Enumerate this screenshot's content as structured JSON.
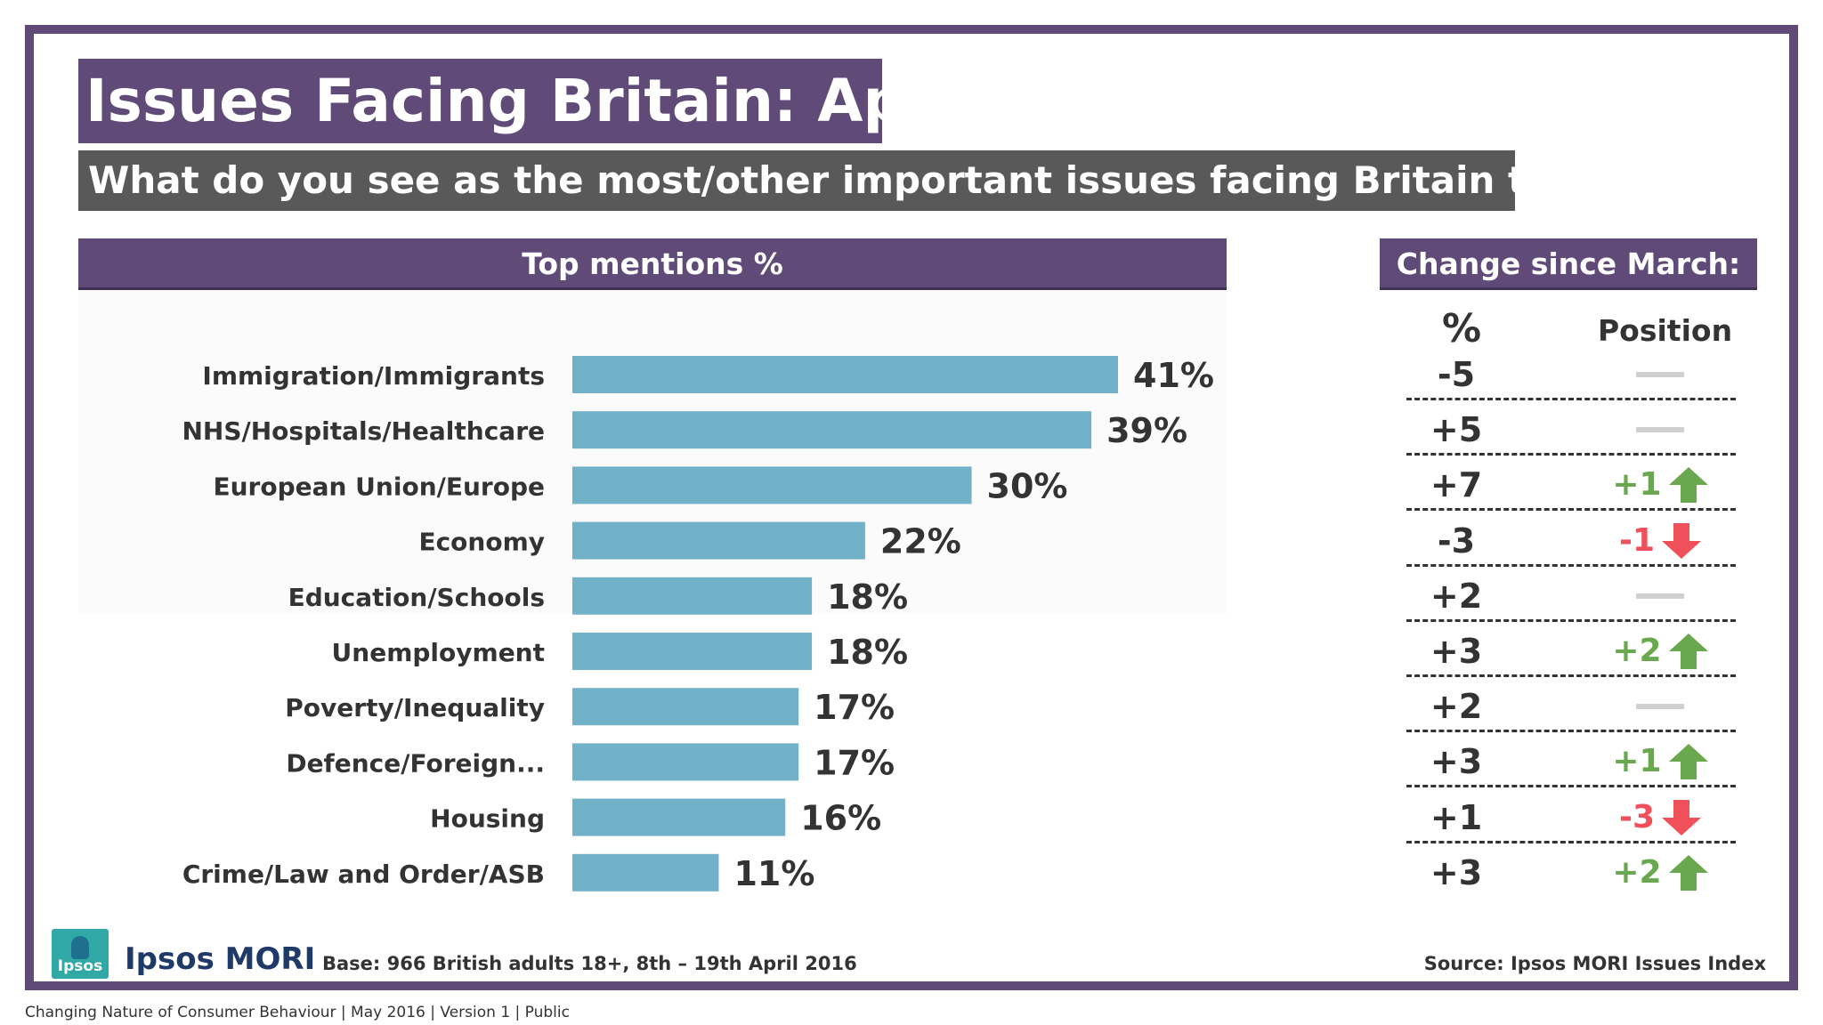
{
  "title": "Issues Facing Britain: April",
  "subtitle": "What do you see as the most/other important issues facing Britain today?",
  "panels": {
    "left_header": "Top mentions %",
    "right_header": "Change since March:",
    "pct_col_label": "%",
    "position_col_label": "Position"
  },
  "colors": {
    "brand_purple": "#5f4a78",
    "bar": "#72b2c9",
    "up": "#6aa84f",
    "down": "#f0505a",
    "no_change": "#cfcfcf"
  },
  "chart_data": {
    "type": "bar",
    "orientation": "horizontal",
    "title": "Top mentions %",
    "xlabel": "",
    "ylabel": "",
    "xlim": [
      0,
      45
    ],
    "grid": false,
    "categories": [
      "Immigration/Immigrants",
      "NHS/Hospitals/Healthcare",
      "European Union/Europe",
      "Economy",
      "Education/Schools",
      "Unemployment",
      "Poverty/Inequality",
      "Defence/Foreign...",
      "Housing",
      "Crime/Law and Order/ASB"
    ],
    "values": [
      41,
      39,
      30,
      22,
      18,
      18,
      17,
      17,
      16,
      11
    ],
    "value_labels": [
      "41%",
      "39%",
      "30%",
      "22%",
      "18%",
      "18%",
      "17%",
      "17%",
      "16%",
      "11%"
    ],
    "change_pct": [
      "-5",
      "+5",
      "+7",
      "-3",
      "+2",
      "+3",
      "+2",
      "+3",
      "+1",
      "+3"
    ],
    "position_change": [
      {
        "label": "",
        "direction": "none"
      },
      {
        "label": "",
        "direction": "none"
      },
      {
        "label": "+1",
        "direction": "up"
      },
      {
        "label": "-1",
        "direction": "down"
      },
      {
        "label": "",
        "direction": "none"
      },
      {
        "label": "+2",
        "direction": "up"
      },
      {
        "label": "",
        "direction": "none"
      },
      {
        "label": "+1",
        "direction": "up"
      },
      {
        "label": "-3",
        "direction": "down"
      },
      {
        "label": "+2",
        "direction": "up"
      }
    ]
  },
  "footer": {
    "brand_logo_word": "Ipsos",
    "brand": "Ipsos MORI",
    "base": "Base: 966  British adults 18+, 8th – 19th  April 2016",
    "source": "Source: Ipsos MORI Issues Index",
    "bottom_line": "Changing Nature of Consumer Behaviour |  May 2016 |  Version 1  |  Public"
  }
}
